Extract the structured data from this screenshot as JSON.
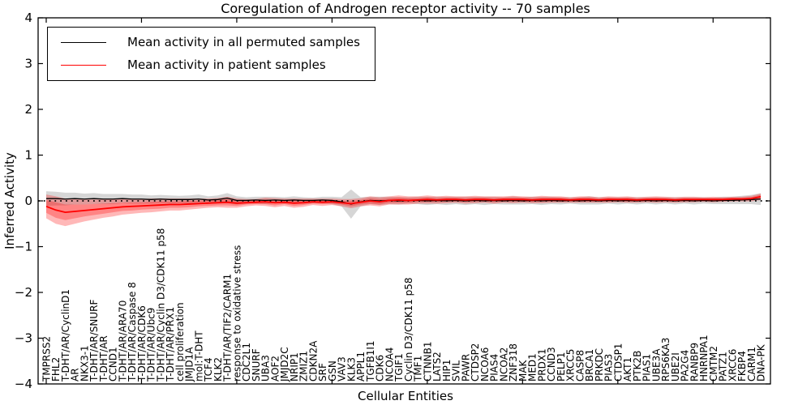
{
  "chart_data": {
    "type": "line",
    "title": "Coregulation of Androgen receptor activity -- 70 samples",
    "xlabel": "Cellular Entities",
    "ylabel": "Inferred Activity",
    "ylim": [
      -4,
      4
    ],
    "yticks": [
      -4,
      -3,
      -2,
      -1,
      0,
      1,
      2,
      3,
      4
    ],
    "ytick_labels": [
      "−4",
      "−3",
      "−2",
      "−1",
      "0",
      "1",
      "2",
      "3",
      "4"
    ],
    "xtick_every": 10,
    "grid": false,
    "zero_line": {
      "y": 0,
      "style": "dotted",
      "color": "#000000"
    },
    "legend": {
      "position": "upper left",
      "entries": [
        {
          "label": "Mean activity in all permuted samples",
          "color": "#000000"
        },
        {
          "label": "Mean activity in patient samples",
          "color": "#ff0000"
        }
      ]
    },
    "categories": [
      "TMPRSS2",
      "FHL2",
      "T-DHT/AR/CyclinD1",
      "AR",
      "NKX3-1",
      "T-DHT/AR/SNURF",
      "T-DHT/AR",
      "CCND1",
      "T-DHT/AR/ARA70",
      "T-DHT/AR/Caspase 8",
      "T-DHT/AR/CDK6",
      "T-DHT/AR/Ubc9",
      "T-DHT/AR/Cyclin D3/CDK11 p58",
      "T-DHT/AR/PRX1",
      "cell proliferation",
      "JMJD1A",
      "mol:T-DHT",
      "TCF4",
      "KLK2",
      "T-DHT/AR/TIF2/CARM1",
      "response to oxidative stress",
      "CDC2L1",
      "SNURF",
      "UBA3",
      "AOF2",
      "JMJD2C",
      "NRIP1",
      "ZMIZ1",
      "CDKN2A",
      "SRF",
      "GSN",
      "VAV3",
      "KLK3",
      "APPL1",
      "TGFB1I1",
      "CDK6",
      "NCOA4",
      "TGIF1",
      "Cyclin D3/CDK11 p58",
      "TMF1",
      "CTNNB1",
      "LATS2",
      "HIP1",
      "SVIL",
      "PAWR",
      "CTDSP2",
      "NCOA6",
      "PIAS4",
      "NCOA2",
      "ZNF318",
      "MAK",
      "MED1",
      "PRDX1",
      "CCND3",
      "PELP1",
      "XRCC5",
      "CASP8",
      "BRCA1",
      "PRKDC",
      "PIAS3",
      "CTDSP1",
      "AKT1",
      "PTK2B",
      "PIAS1",
      "UBE3A",
      "RPS6KA3",
      "UBE2I",
      "PA2G4",
      "RANBP9",
      "HNRNPA1",
      "CMTM2",
      "PATZ1",
      "XRCC6",
      "FKBP4",
      "CARM1",
      "DNA-PK"
    ],
    "series": [
      {
        "name": "Mean activity in all permuted samples",
        "color": "#000000",
        "values": [
          0.05,
          0.05,
          0.04,
          0.05,
          0.04,
          0.05,
          0.04,
          0.04,
          0.05,
          0.04,
          0.04,
          0.03,
          0.04,
          0.03,
          0.03,
          0.03,
          0.04,
          0.02,
          0.03,
          0.06,
          0.01,
          0.01,
          0.02,
          0.01,
          0.02,
          0.01,
          0.02,
          0.01,
          0.01,
          0.02,
          0.01,
          -0.02,
          -0.07,
          -0.02,
          0.01,
          0.0,
          0.01,
          0.0,
          0.01,
          0.01,
          0.0,
          0.01,
          0.0,
          0.01,
          0.0,
          0.01,
          0.0,
          0.01,
          0.0,
          0.01,
          0.0,
          0.01,
          0.0,
          0.01,
          0.0,
          0.01,
          0.0,
          0.01,
          0.0,
          0.01,
          0.0,
          0.01,
          0.0,
          0.01,
          0.0,
          0.01,
          0.0,
          0.01,
          0.0,
          0.01,
          0.0,
          0.01,
          0.01,
          0.02,
          0.03,
          0.04
        ]
      },
      {
        "name": "Mean activity in patient samples",
        "color": "#ff0000",
        "values": [
          -0.12,
          -0.2,
          -0.25,
          -0.23,
          -0.21,
          -0.19,
          -0.17,
          -0.15,
          -0.13,
          -0.12,
          -0.11,
          -0.1,
          -0.09,
          -0.08,
          -0.08,
          -0.07,
          -0.06,
          -0.05,
          -0.04,
          -0.03,
          -0.05,
          -0.04,
          -0.03,
          -0.02,
          -0.04,
          -0.03,
          -0.05,
          -0.04,
          -0.02,
          -0.03,
          -0.02,
          -0.04,
          -0.06,
          -0.03,
          0.0,
          -0.02,
          0.01,
          0.02,
          0.01,
          0.02,
          0.03,
          0.02,
          0.03,
          0.03,
          0.02,
          0.03,
          0.03,
          0.02,
          0.03,
          0.03,
          0.03,
          0.02,
          0.03,
          0.03,
          0.03,
          0.02,
          0.03,
          0.03,
          0.02,
          0.03,
          0.03,
          0.03,
          0.02,
          0.03,
          0.03,
          0.03,
          0.02,
          0.03,
          0.03,
          0.03,
          0.03,
          0.03,
          0.04,
          0.04,
          0.05,
          0.09
        ]
      }
    ],
    "bands": [
      {
        "name": "permuted-std-band",
        "center_series": 0,
        "color": "#000000",
        "opacity": 0.16,
        "halfwidth": [
          0.16,
          0.15,
          0.14,
          0.13,
          0.12,
          0.12,
          0.11,
          0.11,
          0.1,
          0.1,
          0.1,
          0.09,
          0.09,
          0.09,
          0.08,
          0.09,
          0.1,
          0.08,
          0.09,
          0.11,
          0.09,
          0.07,
          0.07,
          0.08,
          0.07,
          0.07,
          0.08,
          0.07,
          0.06,
          0.07,
          0.08,
          0.1,
          0.32,
          0.1,
          0.08,
          0.09,
          0.08,
          0.08,
          0.07,
          0.08,
          0.09,
          0.08,
          0.09,
          0.08,
          0.09,
          0.08,
          0.09,
          0.08,
          0.08,
          0.09,
          0.08,
          0.08,
          0.09,
          0.08,
          0.08,
          0.07,
          0.08,
          0.09,
          0.08,
          0.07,
          0.08,
          0.07,
          0.08,
          0.07,
          0.08,
          0.07,
          0.08,
          0.07,
          0.08,
          0.07,
          0.07,
          0.08,
          0.08,
          0.09,
          0.1,
          0.13
        ]
      },
      {
        "name": "patient-std-band-outer",
        "center_series": 1,
        "color": "#ff0000",
        "opacity": 0.28,
        "halfwidth": [
          0.26,
          0.3,
          0.3,
          0.27,
          0.24,
          0.22,
          0.2,
          0.19,
          0.17,
          0.16,
          0.15,
          0.15,
          0.14,
          0.13,
          0.13,
          0.12,
          0.11,
          0.1,
          0.1,
          0.12,
          0.1,
          0.08,
          0.07,
          0.09,
          0.1,
          0.08,
          0.1,
          0.09,
          0.07,
          0.08,
          0.07,
          0.08,
          0.1,
          0.09,
          0.1,
          0.1,
          0.09,
          0.1,
          0.09,
          0.08,
          0.09,
          0.08,
          0.08,
          0.07,
          0.08,
          0.08,
          0.07,
          0.08,
          0.07,
          0.08,
          0.07,
          0.07,
          0.08,
          0.07,
          0.07,
          0.06,
          0.07,
          0.07,
          0.06,
          0.07,
          0.06,
          0.07,
          0.06,
          0.06,
          0.07,
          0.06,
          0.06,
          0.06,
          0.06,
          0.05,
          0.06,
          0.05,
          0.05,
          0.05,
          0.06,
          0.07
        ]
      },
      {
        "name": "patient-std-band-inner",
        "center_series": 1,
        "color": "#ff0000",
        "opacity": 0.28,
        "halfwidth": [
          0.14,
          0.17,
          0.17,
          0.15,
          0.13,
          0.12,
          0.11,
          0.1,
          0.09,
          0.09,
          0.08,
          0.08,
          0.08,
          0.07,
          0.07,
          0.07,
          0.06,
          0.06,
          0.06,
          0.07,
          0.06,
          0.04,
          0.04,
          0.05,
          0.06,
          0.04,
          0.06,
          0.05,
          0.04,
          0.04,
          0.04,
          0.04,
          0.06,
          0.05,
          0.06,
          0.06,
          0.05,
          0.06,
          0.05,
          0.04,
          0.05,
          0.04,
          0.04,
          0.04,
          0.04,
          0.04,
          0.04,
          0.04,
          0.04,
          0.04,
          0.04,
          0.04,
          0.04,
          0.04,
          0.04,
          0.03,
          0.04,
          0.04,
          0.03,
          0.04,
          0.03,
          0.04,
          0.03,
          0.03,
          0.04,
          0.03,
          0.03,
          0.03,
          0.03,
          0.03,
          0.03,
          0.03,
          0.03,
          0.03,
          0.03,
          0.04
        ]
      }
    ]
  }
}
